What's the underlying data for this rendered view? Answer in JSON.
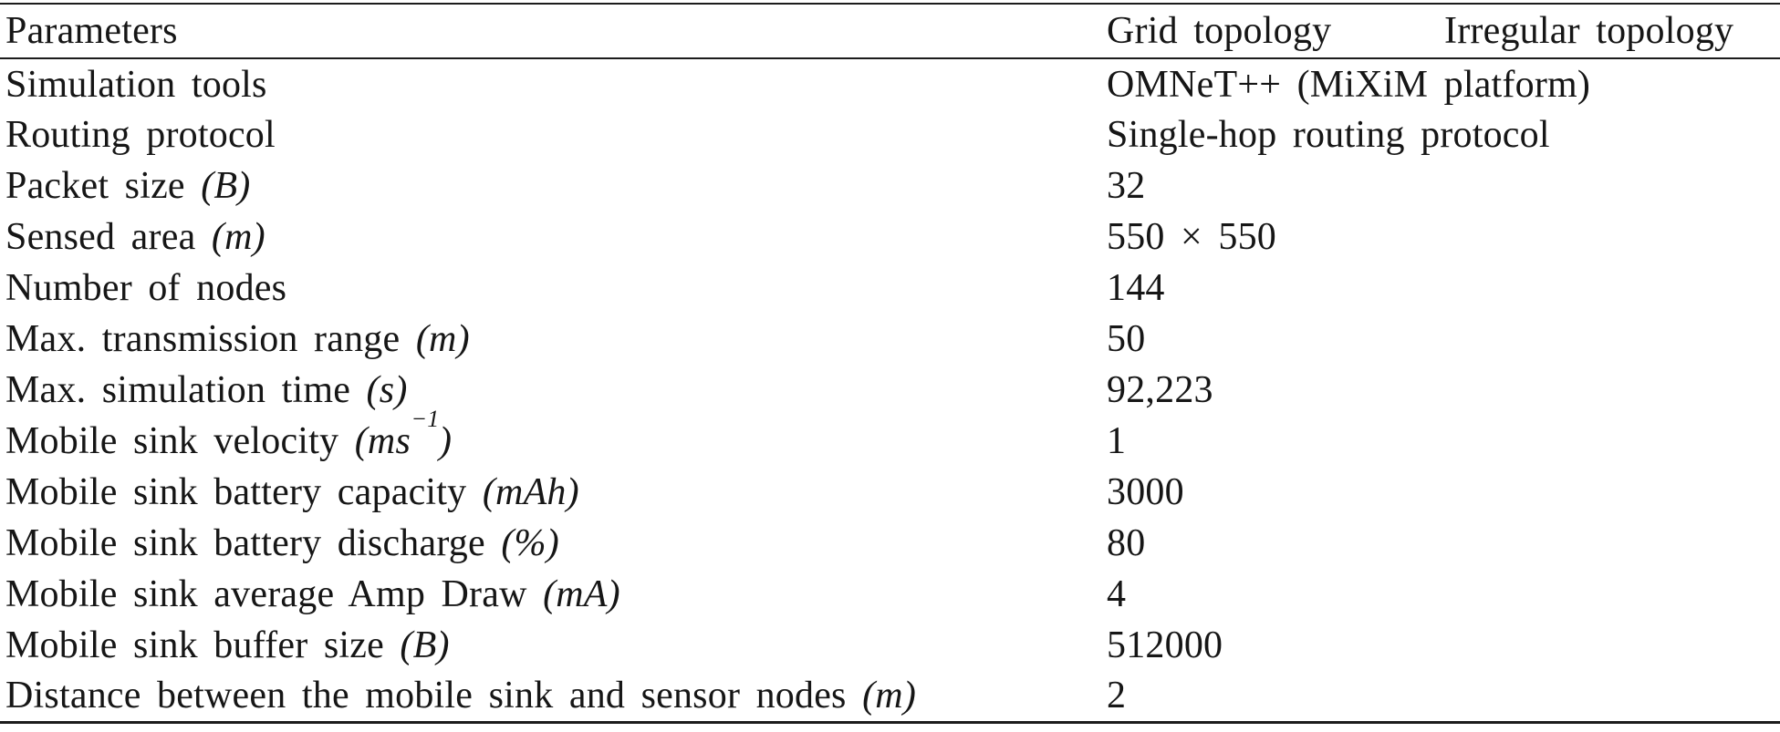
{
  "table": {
    "columns": [
      "Parameters",
      "Grid topology",
      "Irregular topology"
    ],
    "rows": [
      {
        "param": "Simulation tools",
        "unit": "",
        "value": "OMNeT++ (MiXiM platform)"
      },
      {
        "param": "Routing protocol",
        "unit": "",
        "value": "Single-hop routing protocol"
      },
      {
        "param": "Packet size",
        "unit": "B",
        "value": "32"
      },
      {
        "param": "Sensed area",
        "unit": "m",
        "value": "550 × 550"
      },
      {
        "param": "Number of nodes",
        "unit": "",
        "value": "144"
      },
      {
        "param": "Max. transmission range",
        "unit": "m",
        "value": "50"
      },
      {
        "param": "Max. simulation time",
        "unit": "s",
        "value": "92,223"
      },
      {
        "param": "Mobile sink velocity",
        "unit": "ms",
        "unit_sup": "−1",
        "value": "1"
      },
      {
        "param": "Mobile sink battery capacity",
        "unit": "mAh",
        "value": "3000"
      },
      {
        "param": "Mobile sink battery discharge",
        "unit": "%",
        "value": "80"
      },
      {
        "param": "Mobile sink average Amp Draw",
        "unit": "mA",
        "value": "4"
      },
      {
        "param": "Mobile sink buffer size",
        "unit": "B",
        "value": "512000"
      },
      {
        "param": "Distance between the mobile sink and sensor nodes",
        "unit": "m",
        "value": "2"
      }
    ]
  }
}
